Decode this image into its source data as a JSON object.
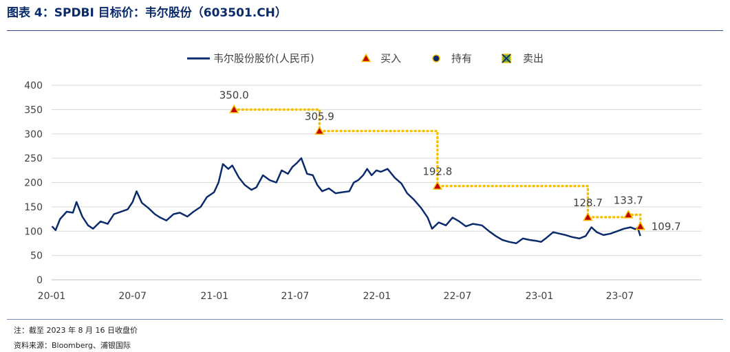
{
  "title": "图表 4：SPDBI 目标价：韦尔股份（603501.CH）",
  "notes": {
    "note": "注：截至 2023 年 8 月 16 日收盘价",
    "source": "资料来源：Bloomberg、浦银国际"
  },
  "colors": {
    "price_line": "#0a2b6b",
    "target_line": "#f5c000",
    "marker_fill": "#c00000",
    "marker_edge": "#f5c000",
    "grid": "#d9d9d9",
    "axis_text": "#404040"
  },
  "chart_data": {
    "type": "line",
    "title": "",
    "xlabel": "",
    "ylabel": "",
    "ylim": [
      0,
      400
    ],
    "yticks": [
      0,
      50,
      100,
      150,
      200,
      250,
      300,
      350,
      400
    ],
    "xticks": [
      "20-01",
      "20-07",
      "21-01",
      "21-07",
      "22-01",
      "22-07",
      "23-01",
      "23-07"
    ],
    "grid": "horizontal",
    "legend_position": "top",
    "legend": {
      "price": "韦尔股份股价(人民币)",
      "buy": "买入",
      "hold": "持有",
      "sell": "卖出"
    },
    "series": [
      {
        "name": "韦尔股份股价(人民币)",
        "points": [
          [
            "2020-01-02",
            110
          ],
          [
            "2020-01-10",
            102
          ],
          [
            "2020-01-20",
            125
          ],
          [
            "2020-02-04",
            140
          ],
          [
            "2020-02-18",
            138
          ],
          [
            "2020-02-26",
            160
          ],
          [
            "2020-03-10",
            130
          ],
          [
            "2020-03-23",
            112
          ],
          [
            "2020-04-03",
            105
          ],
          [
            "2020-04-20",
            120
          ],
          [
            "2020-05-06",
            115
          ],
          [
            "2020-05-20",
            135
          ],
          [
            "2020-06-05",
            140
          ],
          [
            "2020-06-20",
            145
          ],
          [
            "2020-07-01",
            160
          ],
          [
            "2020-07-10",
            182
          ],
          [
            "2020-07-22",
            158
          ],
          [
            "2020-08-05",
            148
          ],
          [
            "2020-08-20",
            135
          ],
          [
            "2020-09-01",
            128
          ],
          [
            "2020-09-15",
            122
          ],
          [
            "2020-10-01",
            135
          ],
          [
            "2020-10-15",
            138
          ],
          [
            "2020-11-01",
            130
          ],
          [
            "2020-11-15",
            140
          ],
          [
            "2020-12-01",
            150
          ],
          [
            "2020-12-15",
            170
          ],
          [
            "2020-12-31",
            180
          ],
          [
            "2021-01-10",
            200
          ],
          [
            "2021-01-20",
            238
          ],
          [
            "2021-02-01",
            228
          ],
          [
            "2021-02-10",
            235
          ],
          [
            "2021-02-25",
            210
          ],
          [
            "2021-03-10",
            195
          ],
          [
            "2021-03-25",
            185
          ],
          [
            "2021-04-05",
            190
          ],
          [
            "2021-04-20",
            215
          ],
          [
            "2021-05-05",
            205
          ],
          [
            "2021-05-20",
            200
          ],
          [
            "2021-06-01",
            225
          ],
          [
            "2021-06-15",
            218
          ],
          [
            "2021-06-25",
            232
          ],
          [
            "2021-07-05",
            240
          ],
          [
            "2021-07-15",
            250
          ],
          [
            "2021-07-28",
            218
          ],
          [
            "2021-08-10",
            215
          ],
          [
            "2021-08-20",
            195
          ],
          [
            "2021-08-31",
            182
          ],
          [
            "2021-09-15",
            188
          ],
          [
            "2021-09-30",
            178
          ],
          [
            "2021-10-15",
            180
          ],
          [
            "2021-10-31",
            182
          ],
          [
            "2021-11-10",
            200
          ],
          [
            "2021-11-20",
            205
          ],
          [
            "2021-12-01",
            215
          ],
          [
            "2021-12-10",
            228
          ],
          [
            "2021-12-20",
            215
          ],
          [
            "2021-12-31",
            225
          ],
          [
            "2022-01-10",
            222
          ],
          [
            "2022-01-25",
            228
          ],
          [
            "2022-02-10",
            210
          ],
          [
            "2022-02-25",
            198
          ],
          [
            "2022-03-10",
            178
          ],
          [
            "2022-03-25",
            165
          ],
          [
            "2022-04-10",
            148
          ],
          [
            "2022-04-25",
            128
          ],
          [
            "2022-05-05",
            105
          ],
          [
            "2022-05-20",
            118
          ],
          [
            "2022-06-05",
            112
          ],
          [
            "2022-06-20",
            128
          ],
          [
            "2022-07-05",
            120
          ],
          [
            "2022-07-20",
            110
          ],
          [
            "2022-08-05",
            115
          ],
          [
            "2022-08-25",
            112
          ],
          [
            "2022-09-10",
            100
          ],
          [
            "2022-09-25",
            90
          ],
          [
            "2022-10-10",
            82
          ],
          [
            "2022-10-25",
            78
          ],
          [
            "2022-11-10",
            75
          ],
          [
            "2022-11-25",
            85
          ],
          [
            "2022-12-10",
            82
          ],
          [
            "2022-12-25",
            80
          ],
          [
            "2023-01-05",
            78
          ],
          [
            "2023-01-15",
            85
          ],
          [
            "2023-02-01",
            98
          ],
          [
            "2023-02-15",
            95
          ],
          [
            "2023-03-01",
            92
          ],
          [
            "2023-03-15",
            88
          ],
          [
            "2023-04-01",
            85
          ],
          [
            "2023-04-15",
            90
          ],
          [
            "2023-04-28",
            108
          ],
          [
            "2023-05-10",
            98
          ],
          [
            "2023-05-25",
            92
          ],
          [
            "2023-06-10",
            95
          ],
          [
            "2023-06-25",
            100
          ],
          [
            "2023-07-10",
            105
          ],
          [
            "2023-07-25",
            108
          ],
          [
            "2023-08-05",
            104
          ],
          [
            "2023-08-10",
            107
          ],
          [
            "2023-08-16",
            90
          ]
        ]
      },
      {
        "name": "目标价",
        "points": [
          [
            "2021-02-14",
            350.0
          ],
          [
            "2021-08-25",
            350.0
          ],
          [
            "2021-08-25",
            305.9
          ],
          [
            "2022-05-17",
            305.9
          ],
          [
            "2022-05-17",
            192.8
          ],
          [
            "2023-04-20",
            192.8
          ],
          [
            "2023-04-20",
            128.7
          ],
          [
            "2023-07-20",
            128.7
          ],
          [
            "2023-07-20",
            133.7
          ],
          [
            "2023-08-16",
            133.7
          ],
          [
            "2023-08-16",
            109.7
          ]
        ]
      }
    ],
    "ratings": [
      {
        "date": "2021-02-14",
        "value": 350.0,
        "label": "350.0",
        "rating": "买入"
      },
      {
        "date": "2021-08-25",
        "value": 305.9,
        "label": "305.9",
        "rating": "买入"
      },
      {
        "date": "2022-05-17",
        "value": 192.8,
        "label": "192.8",
        "rating": "买入"
      },
      {
        "date": "2023-04-20",
        "value": 128.7,
        "label": "128.7",
        "rating": "买入"
      },
      {
        "date": "2023-07-20",
        "value": 133.7,
        "label": "133.7",
        "rating": "买入"
      },
      {
        "date": "2023-08-16",
        "value": 109.7,
        "label": "109.7",
        "rating": "买入"
      }
    ]
  }
}
